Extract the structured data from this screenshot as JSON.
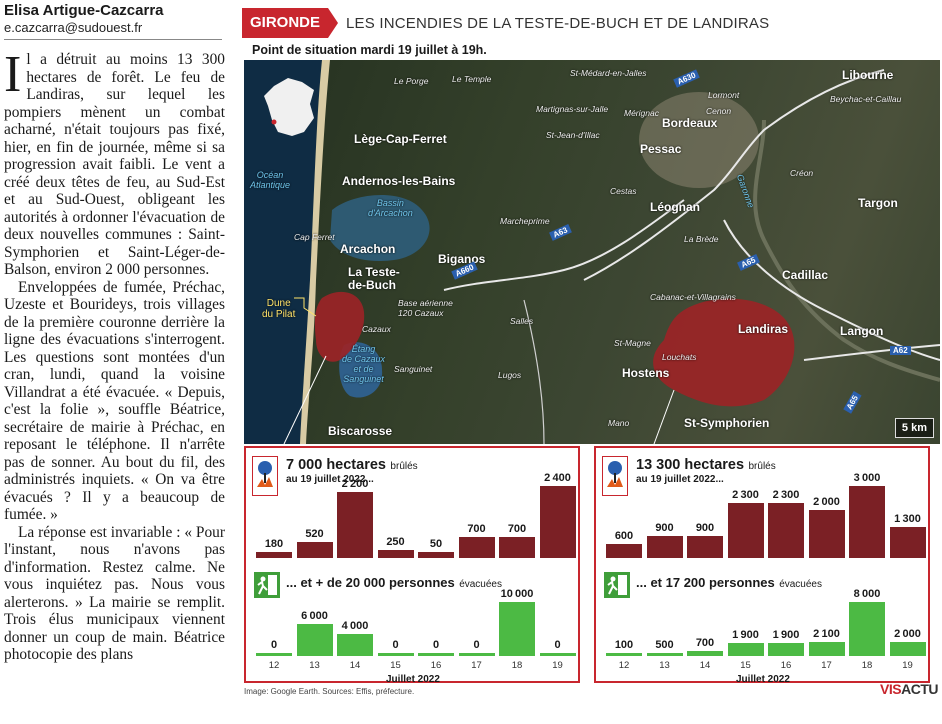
{
  "article": {
    "author": "Elisa Artigue-Cazcarra",
    "email": "e.cazcarra@sudouest.fr",
    "dropcap": "I",
    "paragraphs": [
      "l a détruit au moins 13 300 hectares de forêt. Le feu de Landiras, sur lequel les pompiers mènent un combat acharné, n'était toujours pas fixé, hier, en fin de journée, même si sa progression avait faibli. Le vent a créé deux têtes de feu, au Sud-Est et au Sud-Ouest, obligeant les autorités à ordonner l'évacuation de deux nouvelles communes : Saint-Symphorien et Saint-Léger-de-Balson, environ 2 000 personnes.",
      "Enveloppées de fumée, Préchac, Uzeste et Bourideys, trois villages de la première couronne derrière la ligne des évacuations s'interrogent. Les questions sont montées d'un cran, lundi, quand la voisine Villandrat a été évacuée. « Depuis, c'est la folie », souffle Béatrice, secrétaire de mairie à Préchac, en reposant le téléphone. Il n'arrête pas de sonner. Au bout du fil, des administrés inquiets. « On va être évacués ? Il y a beaucoup de fumée. »",
      "La réponse est invariable : « Pour l'instant, nous n'avons pas d'information. Restez calme. Ne vous inquiétez pas. Nous vous alerterons. » La mairie se remplit. Trois élus municipaux viennent donner un coup de main. Béatrice photocopie des plans"
    ]
  },
  "header": {
    "badge": "GIRONDE",
    "title": "LES INCENDIES DE LA TESTE-DE-BUCH ET DE LANDIRAS",
    "subtitle": "Point de situation mardi 19 juillet à 19h."
  },
  "map": {
    "labels": {
      "libourne": "Libourne",
      "leporge": "Le Porge",
      "letemple": "Le Temple",
      "stmedard": "St-Médard-en-Jalles",
      "lormont": "Lormont",
      "cenon": "Cenon",
      "beychac": "Beychac-et-Caillau",
      "martignas": "Martignas-sur-Jalle",
      "merignac": "Mérignac",
      "bordeaux": "Bordeaux",
      "lege": "Lège-Cap-Ferret",
      "stjean": "St-Jean-d'Illac",
      "pessac": "Pessac",
      "creon": "Créon",
      "ocean": "Océan\nAtlantique",
      "andernos": "Andernos-les-Bains",
      "cestas": "Cestas",
      "garonne": "Garonne",
      "bassin": "Bassin\nd'Arcachon",
      "leognan": "Léognan",
      "targon": "Targon",
      "marcheprime": "Marcheprime",
      "capferret": "Cap Ferret",
      "arcachon": "Arcachon",
      "labrede": "La Brède",
      "biganos": "Biganos",
      "cadillac": "Cadillac",
      "latestedebuch": "La Teste-\nde-Buch",
      "cabanac": "Cabanac-et-Villagrains",
      "dune": "Dune\ndu Pilat",
      "baseaerienne": "Base aérienne\n120 Cazaux",
      "salles": "Salles",
      "cazaux": "Cazaux",
      "landiras": "Landiras",
      "langon": "Langon",
      "stmagne": "St-Magne",
      "etang": "Étang\nde Cazaux\net de\nSanguinet",
      "louchats": "Louchats",
      "sanguinet": "Sanguinet",
      "hostens": "Hostens",
      "lugos": "Lugos",
      "mano": "Mano",
      "stsymphorien": "St-Symphorien",
      "biscarosse": "Biscarosse"
    },
    "roads": {
      "a630": "A630",
      "a63": "A63",
      "a660": "A660",
      "a65a": "A65",
      "a65b": "A65",
      "a62": "A62"
    },
    "scale": "5 km"
  },
  "left_panel": {
    "hectares": "7 000 hectares",
    "burnt_label": "brûlés",
    "date": "au 19 juillet 2022...",
    "persons": "... et + de 20 000 personnes",
    "evac_label": "évacuées"
  },
  "right_panel": {
    "hectares": "13 300 hectares",
    "burnt_label": "brûlés",
    "date": "au 19 juillet 2022...",
    "persons": "... et 17 200 personnes",
    "evac_label": "évacuées"
  },
  "month_label": "Juillet 2022",
  "credits": "Image: Google Earth.  Sources: Effis, préfecture.",
  "brand": {
    "a": "VIS",
    "b": "ACTU"
  },
  "colors": {
    "red": "#c8262e",
    "burn": "#7b2025",
    "evac": "#4cba44"
  },
  "chart_data": [
    {
      "type": "bar",
      "title": "La Teste-de-Buch : hectares brûlés",
      "categories": [
        "12",
        "13",
        "14",
        "15",
        "16",
        "17",
        "18",
        "19"
      ],
      "values": [
        180,
        520,
        2200,
        250,
        50,
        700,
        700,
        2400
      ],
      "xlabel": "Juillet 2022",
      "ylim": [
        0,
        2400
      ]
    },
    {
      "type": "bar",
      "title": "La Teste-de-Buch : personnes évacuées",
      "categories": [
        "12",
        "13",
        "14",
        "15",
        "16",
        "17",
        "18",
        "19"
      ],
      "values": [
        0,
        6000,
        4000,
        0,
        0,
        0,
        10000,
        0
      ],
      "xlabel": "Juillet 2022",
      "ylim": [
        0,
        10000
      ]
    },
    {
      "type": "bar",
      "title": "Landiras : hectares brûlés",
      "categories": [
        "12",
        "13",
        "14",
        "15",
        "16",
        "17",
        "18",
        "19"
      ],
      "values": [
        600,
        900,
        900,
        2300,
        2300,
        2000,
        3000,
        1300
      ],
      "xlabel": "Juillet 2022",
      "ylim": [
        0,
        3000
      ]
    },
    {
      "type": "bar",
      "title": "Landiras : personnes évacuées",
      "categories": [
        "12",
        "13",
        "14",
        "15",
        "16",
        "17",
        "18",
        "19"
      ],
      "values": [
        100,
        500,
        700,
        1900,
        1900,
        2100,
        8000,
        2000
      ],
      "xlabel": "Juillet 2022",
      "ylim": [
        0,
        8000
      ]
    }
  ]
}
